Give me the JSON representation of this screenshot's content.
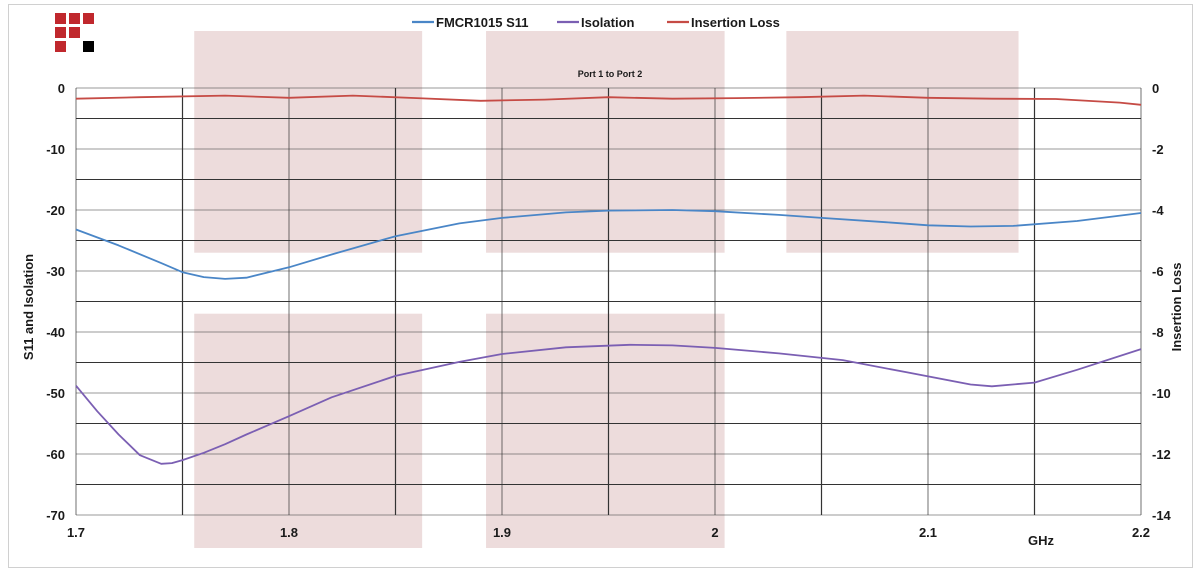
{
  "chart_data": {
    "type": "line",
    "legend_position": "top-center",
    "grid": true,
    "xlabel": "GHz",
    "ylabel": "S11 and Isolation",
    "y2label": "Insertion Loss",
    "annotation": "Port 1 to Port 2",
    "xlim": [
      1.7,
      2.2
    ],
    "ylim": [
      -70,
      0
    ],
    "y2lim": [
      -14,
      0
    ],
    "x_ticks": [
      "1.7",
      "1.8",
      "1.9",
      "2",
      "2.1",
      "2.2"
    ],
    "y_ticks": [
      "0",
      "-10",
      "-20",
      "-30",
      "-40",
      "-50",
      "-60",
      "-70"
    ],
    "y2_ticks": [
      "0",
      "-2",
      "-4",
      "-6",
      "-8",
      "-10",
      "-12",
      "-14"
    ],
    "series": [
      {
        "name": "FMCR1015 S11",
        "axis": "left",
        "color": "#4a86c7",
        "x": [
          1.7,
          1.72,
          1.74,
          1.75,
          1.76,
          1.77,
          1.78,
          1.8,
          1.82,
          1.85,
          1.88,
          1.9,
          1.93,
          1.95,
          1.98,
          2.0,
          2.03,
          2.05,
          2.08,
          2.1,
          2.12,
          2.14,
          2.17,
          2.2
        ],
        "y": [
          -23.2,
          -25.8,
          -28.7,
          -30.2,
          -31.0,
          -31.3,
          -31.1,
          -29.4,
          -27.3,
          -24.3,
          -22.2,
          -21.3,
          -20.4,
          -20.1,
          -20.0,
          -20.2,
          -20.8,
          -21.3,
          -22.0,
          -22.5,
          -22.7,
          -22.6,
          -21.8,
          -20.5
        ]
      },
      {
        "name": "Isolation",
        "axis": "left",
        "color": "#7b5fb3",
        "x": [
          1.7,
          1.71,
          1.72,
          1.73,
          1.74,
          1.745,
          1.75,
          1.76,
          1.77,
          1.78,
          1.8,
          1.82,
          1.85,
          1.88,
          1.9,
          1.93,
          1.96,
          1.98,
          2.0,
          2.03,
          2.06,
          2.09,
          2.12,
          2.13,
          2.15,
          2.17,
          2.2
        ],
        "y": [
          -48.8,
          -53.0,
          -56.8,
          -60.2,
          -61.6,
          -61.5,
          -61.0,
          -59.8,
          -58.4,
          -56.8,
          -53.8,
          -50.7,
          -47.2,
          -44.9,
          -43.6,
          -42.5,
          -42.1,
          -42.2,
          -42.6,
          -43.5,
          -44.6,
          -46.6,
          -48.6,
          -48.9,
          -48.3,
          -46.2,
          -42.8
        ]
      },
      {
        "name": "Insertion Loss",
        "axis": "right",
        "color": "#c64b45",
        "x": [
          1.7,
          1.73,
          1.77,
          1.8,
          1.83,
          1.86,
          1.89,
          1.92,
          1.95,
          1.98,
          2.01,
          2.04,
          2.07,
          2.1,
          2.13,
          2.16,
          2.19,
          2.2
        ],
        "y": [
          -0.35,
          -0.3,
          -0.25,
          -0.32,
          -0.25,
          -0.33,
          -0.42,
          -0.38,
          -0.3,
          -0.35,
          -0.33,
          -0.3,
          -0.25,
          -0.32,
          -0.35,
          -0.36,
          -0.48,
          -0.55
        ]
      }
    ]
  }
}
